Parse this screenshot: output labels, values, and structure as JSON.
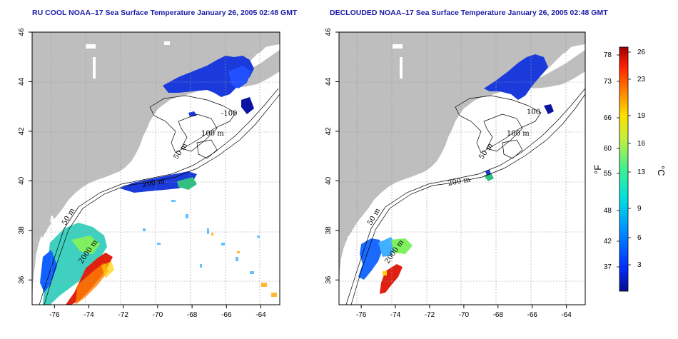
{
  "panels": [
    {
      "id": "ru-cool",
      "title": "RU COOL NOAA–17 Sea Surface Temperature January 26, 2005 02:48 GMT",
      "contour_labels": [
        "-100",
        "100 m",
        "50 m",
        "200 m",
        "50 m",
        "2000 m"
      ]
    },
    {
      "id": "declouded",
      "title": "DECLOUDED NOAA–17 Sea Surface Temperature January 26, 2005 02:48 GMT",
      "contour_labels": [
        "100",
        "100 m",
        "50 m",
        "200 m",
        "50 m",
        "2000 m"
      ]
    }
  ],
  "axes": {
    "x_ticks": [
      "-76",
      "-74",
      "-72",
      "-70",
      "-68",
      "-66",
      "-64"
    ],
    "y_ticks": [
      "36",
      "38",
      "40",
      "42",
      "44",
      "46"
    ],
    "x_values": [
      -76,
      -74,
      -72,
      -70,
      -68,
      -66,
      -64
    ],
    "y_values": [
      36,
      38,
      40,
      42,
      44,
      46
    ],
    "lon_range": [
      -77.3,
      -62.9
    ],
    "lat_range": [
      35.0,
      46.0
    ],
    "grid": "dotted"
  },
  "colorbar": {
    "f_label": "°F",
    "c_label": "°C",
    "f_ticks": [
      "78",
      "73",
      "66",
      "60",
      "55",
      "48",
      "42",
      "37"
    ],
    "c_ticks": [
      "26",
      "23",
      "19",
      "16",
      "13",
      "9",
      "6",
      "3"
    ],
    "colors": [
      "#0a0a8c",
      "#0030ff",
      "#0090ff",
      "#00e0e0",
      "#40f090",
      "#c0f040",
      "#ffe000",
      "#ff8000",
      "#ff2000",
      "#a00000"
    ]
  },
  "colors": {
    "land": "#bebebe",
    "water_no_data": "#ffffff",
    "title": "#1a1aa8"
  }
}
